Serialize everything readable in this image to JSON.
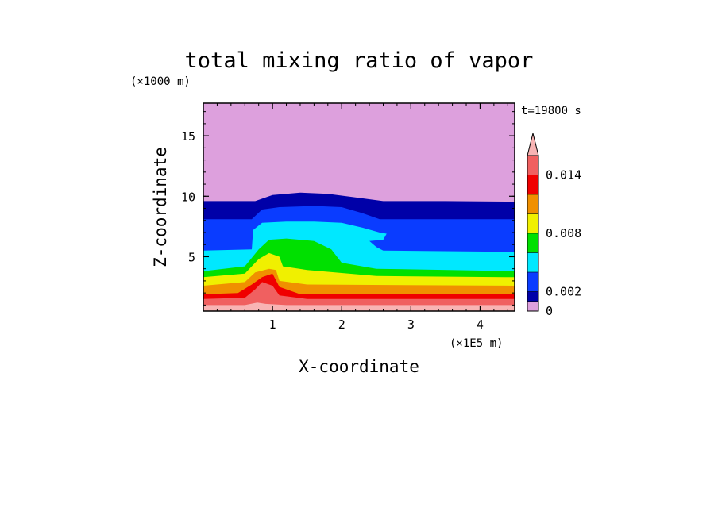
{
  "chart_data": {
    "type": "heatmap",
    "title": "total mixing ratio of vapor",
    "xlabel": "X-coordinate",
    "ylabel": "Z-coordinate",
    "x_unit": "(×1E5 m)",
    "y_unit": "(×1000 m)",
    "time_label": "t=19800 s",
    "xlim": [
      0,
      4.5
    ],
    "ylim": [
      0.5,
      17.7
    ],
    "x_ticks": [
      1,
      2,
      3,
      4
    ],
    "y_ticks": [
      5,
      10,
      15
    ],
    "colorbar": {
      "levels": [
        0,
        0.001,
        0.002,
        0.004,
        0.006,
        0.008,
        0.01,
        0.012,
        0.014,
        0.016
      ],
      "colors": [
        "#dda0dd",
        "#0000a8",
        "#0a3cff",
        "#00e8ff",
        "#00e000",
        "#f0f000",
        "#f09000",
        "#f00000",
        "#f06060",
        "#f8b4b4"
      ],
      "tick_labels": [
        {
          "label": "0",
          "value": 0
        },
        {
          "label": "0.002",
          "value": 0.002
        },
        {
          "label": "0.008",
          "value": 0.008
        },
        {
          "label": "0.014",
          "value": 0.014
        }
      ],
      "extend": "max"
    },
    "layers": [
      {
        "name": "L0",
        "color": "#dda0dd",
        "top": [
          [
            0,
            17.7
          ],
          [
            4.5,
            17.7
          ]
        ]
      },
      {
        "name": "L1",
        "color": "#0000a8",
        "top": [
          [
            0,
            9.6
          ],
          [
            0.75,
            9.6
          ],
          [
            1.0,
            10.1
          ],
          [
            1.4,
            10.3
          ],
          [
            1.8,
            10.2
          ],
          [
            2.2,
            9.9
          ],
          [
            2.6,
            9.6
          ],
          [
            3.5,
            9.6
          ],
          [
            4.5,
            9.55
          ]
        ]
      },
      {
        "name": "L2",
        "color": "#0a3cff",
        "top": [
          [
            0,
            8.1
          ],
          [
            0.7,
            8.1
          ],
          [
            0.85,
            8.9
          ],
          [
            1.1,
            9.1
          ],
          [
            1.6,
            9.2
          ],
          [
            2.0,
            9.1
          ],
          [
            2.3,
            8.6
          ],
          [
            2.55,
            8.1
          ],
          [
            4.5,
            8.1
          ]
        ]
      },
      {
        "name": "L3",
        "color": "#00e8ff",
        "top": [
          [
            0,
            5.5
          ],
          [
            0.7,
            5.6
          ],
          [
            0.72,
            7.2
          ],
          [
            0.85,
            7.8
          ],
          [
            1.2,
            7.9
          ],
          [
            1.6,
            7.9
          ],
          [
            2.0,
            7.8
          ],
          [
            2.3,
            7.4
          ],
          [
            2.55,
            7.0
          ],
          [
            2.65,
            6.9
          ],
          [
            2.6,
            6.4
          ],
          [
            2.4,
            6.3
          ],
          [
            2.5,
            5.8
          ],
          [
            2.6,
            5.5
          ],
          [
            4.5,
            5.4
          ]
        ]
      },
      {
        "name": "L4",
        "color": "#00e000",
        "top": [
          [
            0,
            3.8
          ],
          [
            0.6,
            4.2
          ],
          [
            0.8,
            5.6
          ],
          [
            0.95,
            6.4
          ],
          [
            1.2,
            6.5
          ],
          [
            1.6,
            6.3
          ],
          [
            1.85,
            5.6
          ],
          [
            2.0,
            4.5
          ],
          [
            2.5,
            4.0
          ],
          [
            4.5,
            3.8
          ]
        ]
      },
      {
        "name": "L5",
        "color": "#f0f000",
        "top": [
          [
            0,
            3.3
          ],
          [
            0.6,
            3.6
          ],
          [
            0.8,
            4.8
          ],
          [
            0.95,
            5.3
          ],
          [
            1.1,
            5.0
          ],
          [
            1.15,
            4.2
          ],
          [
            1.5,
            3.9
          ],
          [
            2.5,
            3.4
          ],
          [
            4.5,
            3.3
          ]
        ]
      },
      {
        "name": "L6",
        "color": "#f09000",
        "top": [
          [
            0,
            2.6
          ],
          [
            0.6,
            2.9
          ],
          [
            0.75,
            3.7
          ],
          [
            0.95,
            4.0
          ],
          [
            1.05,
            3.9
          ],
          [
            1.1,
            3.0
          ],
          [
            1.5,
            2.7
          ],
          [
            4.5,
            2.6
          ]
        ]
      },
      {
        "name": "L7",
        "color": "#f00000",
        "top": [
          [
            0,
            1.9
          ],
          [
            0.5,
            2.0
          ],
          [
            0.7,
            2.7
          ],
          [
            0.85,
            3.3
          ],
          [
            1.0,
            3.6
          ],
          [
            1.1,
            2.5
          ],
          [
            1.4,
            1.9
          ],
          [
            4.5,
            1.9
          ]
        ]
      },
      {
        "name": "L8",
        "color": "#f06060",
        "top": [
          [
            0,
            1.5
          ],
          [
            0.6,
            1.6
          ],
          [
            0.75,
            2.3
          ],
          [
            0.85,
            2.9
          ],
          [
            1.0,
            2.6
          ],
          [
            1.1,
            1.8
          ],
          [
            1.5,
            1.5
          ],
          [
            4.5,
            1.5
          ]
        ]
      },
      {
        "name": "L9",
        "color": "#f8b4b4",
        "top": [
          [
            0,
            1.0
          ],
          [
            0.6,
            1.0
          ],
          [
            0.78,
            1.2
          ],
          [
            0.9,
            1.1
          ],
          [
            1.2,
            1.0
          ],
          [
            4.5,
            1.0
          ]
        ]
      }
    ]
  }
}
